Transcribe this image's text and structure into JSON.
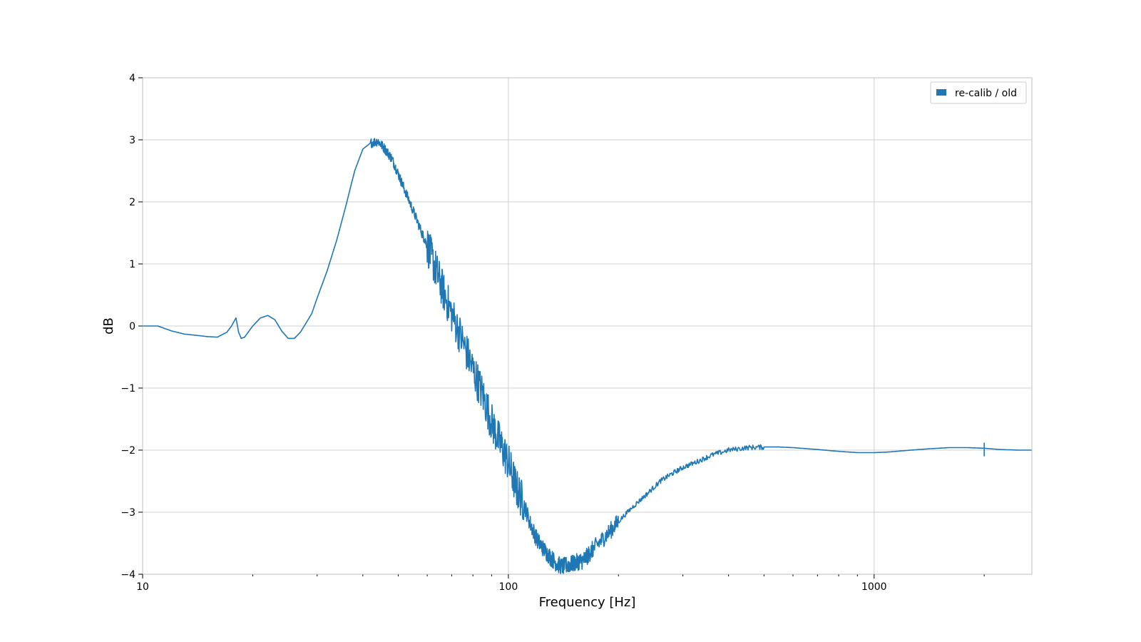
{
  "chart_data": {
    "type": "line",
    "xlabel": "Frequency [Hz]",
    "ylabel": "dB",
    "xscale": "log",
    "xlim": [
      10,
      2700
    ],
    "ylim": [
      -4,
      4
    ],
    "grid": true,
    "legend_placement": "top-right",
    "x_ticks": [
      {
        "value": 10,
        "label": "10"
      },
      {
        "value": 100,
        "label": "100"
      },
      {
        "value": 1000,
        "label": "1000"
      }
    ],
    "y_ticks": [
      {
        "value": 4,
        "label": "4"
      },
      {
        "value": 3,
        "label": "3"
      },
      {
        "value": 2,
        "label": "2"
      },
      {
        "value": 1,
        "label": "1"
      },
      {
        "value": 0,
        "label": "0"
      },
      {
        "value": -1,
        "label": "−1"
      },
      {
        "value": -2,
        "label": "−2"
      },
      {
        "value": -3,
        "label": "−3"
      },
      {
        "value": -4,
        "label": "−4"
      }
    ],
    "series": [
      {
        "name": "re-calib / old",
        "color": "#1f77b4",
        "x": [
          10,
          11,
          12,
          13,
          14,
          15,
          16,
          17,
          17.5,
          18,
          18.3,
          18.6,
          19,
          20,
          21,
          22,
          23,
          24,
          25,
          26,
          27,
          28,
          29,
          30,
          32,
          34,
          36,
          38,
          40,
          42,
          44,
          46,
          48,
          50,
          52,
          55,
          58,
          60,
          63,
          66,
          70,
          75,
          80,
          85,
          90,
          95,
          100,
          105,
          110,
          115,
          120,
          125,
          130,
          135,
          140,
          145,
          150,
          155,
          160,
          165,
          170,
          180,
          190,
          200,
          220,
          240,
          260,
          280,
          300,
          330,
          360,
          400,
          450,
          500,
          550,
          600,
          700,
          800,
          900,
          1000,
          1100,
          1200,
          1400,
          1600,
          1800,
          2000,
          2200,
          2500,
          2700
        ],
        "y": [
          0.0,
          0.0,
          -0.08,
          -0.13,
          -0.15,
          -0.17,
          -0.18,
          -0.1,
          0.0,
          0.13,
          -0.1,
          -0.2,
          -0.18,
          0.0,
          0.13,
          0.17,
          0.1,
          -0.08,
          -0.2,
          -0.2,
          -0.1,
          0.05,
          0.2,
          0.45,
          0.9,
          1.4,
          1.95,
          2.5,
          2.85,
          2.95,
          2.98,
          2.85,
          2.7,
          2.45,
          2.2,
          1.85,
          1.5,
          1.3,
          0.95,
          0.6,
          0.2,
          -0.25,
          -0.7,
          -1.1,
          -1.55,
          -1.9,
          -2.2,
          -2.6,
          -2.85,
          -3.2,
          -3.45,
          -3.6,
          -3.72,
          -3.82,
          -3.88,
          -3.85,
          -3.83,
          -3.8,
          -3.78,
          -3.7,
          -3.6,
          -3.45,
          -3.3,
          -3.15,
          -2.9,
          -2.7,
          -2.5,
          -2.38,
          -2.28,
          -2.18,
          -2.08,
          -2.0,
          -1.96,
          -1.95,
          -1.95,
          -1.96,
          -1.99,
          -2.02,
          -2.04,
          -2.04,
          -2.03,
          -2.01,
          -1.98,
          -1.96,
          -1.96,
          -1.97,
          -1.99,
          -2.0,
          -2.0
        ]
      }
    ],
    "annotations": [
      {
        "x": 2000,
        "y_min": -2.1,
        "y_max": -1.88
      }
    ]
  }
}
